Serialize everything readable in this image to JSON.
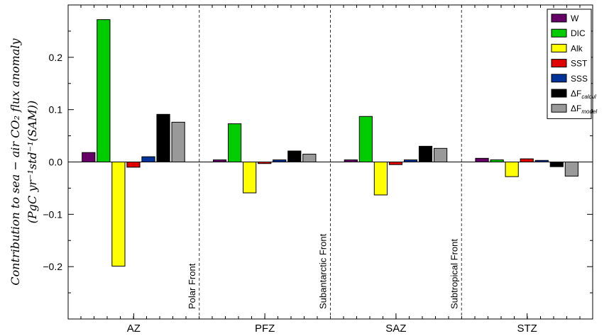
{
  "chart_data": {
    "type": "bar",
    "title": "",
    "xlabel": "",
    "ylabel_line1": "Contribution to sea − air CO₂ flux anomaly",
    "ylabel_line2": "(PgC yr⁻¹std⁻¹(SAM))",
    "ylim": [
      -0.3,
      0.3
    ],
    "yticks": [
      0.2,
      0.1,
      0.0,
      -0.1,
      -0.2
    ],
    "ytick_labels": [
      "0.2",
      "0.1",
      "0.0",
      "−0.1",
      "−0.2"
    ],
    "grid": false,
    "legend_position": "top-right",
    "categories": [
      "AZ",
      "PFZ",
      "SAZ",
      "STZ"
    ],
    "fronts": [
      "Polar Front",
      "Subantarctic Front",
      "Subtropical Front"
    ],
    "series": [
      {
        "name": "W",
        "color": "#660066",
        "values": [
          0.018,
          0.004,
          0.004,
          0.007
        ]
      },
      {
        "name": "DIC",
        "color": "#00cc00",
        "values": [
          0.272,
          0.073,
          0.087,
          0.004
        ]
      },
      {
        "name": "Alk",
        "color": "#ffff00",
        "values": [
          -0.199,
          -0.059,
          -0.063,
          -0.028
        ]
      },
      {
        "name": "SST",
        "color": "#e00000",
        "values": [
          -0.01,
          -0.003,
          -0.005,
          0.006
        ]
      },
      {
        "name": "SSS",
        "color": "#003399",
        "values": [
          0.01,
          0.004,
          0.004,
          0.003
        ]
      },
      {
        "name": "ΔF_calcul",
        "legend_main": "ΔF",
        "legend_sub": "calcul",
        "color": "#000000",
        "values": [
          0.091,
          0.021,
          0.03,
          -0.009
        ]
      },
      {
        "name": "ΔF_model",
        "legend_main": "ΔF",
        "legend_sub": "model",
        "color": "#999999",
        "values": [
          0.076,
          0.015,
          0.026,
          -0.027
        ]
      }
    ]
  }
}
